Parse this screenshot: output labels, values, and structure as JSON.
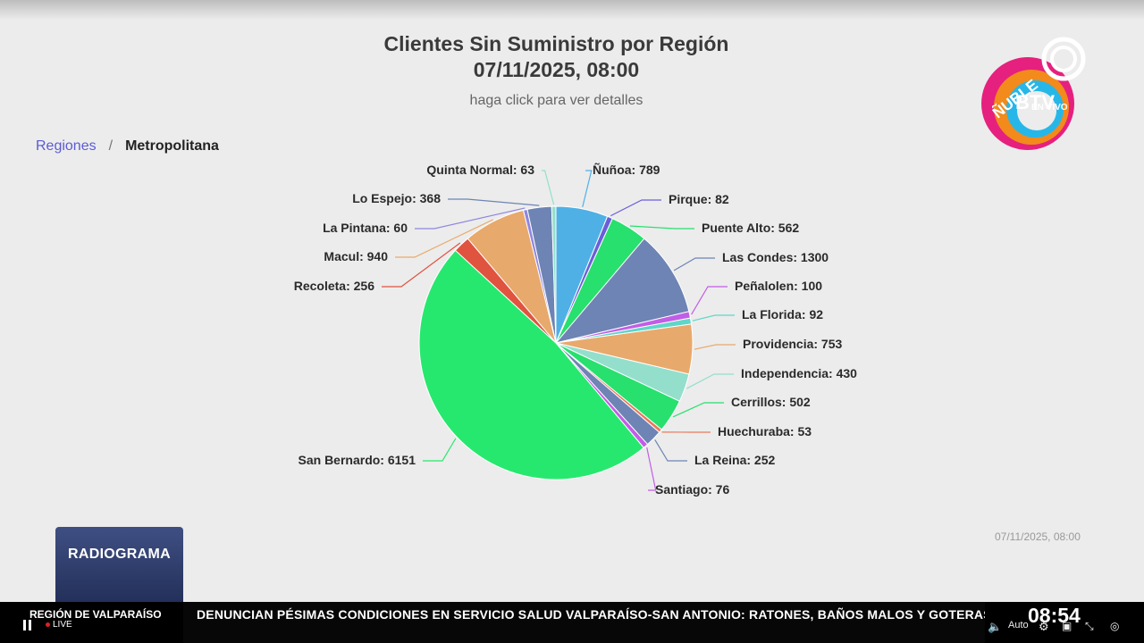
{
  "chart_data": {
    "type": "pie",
    "title": "Clientes Sin Suministro por Región",
    "title_date": "07/11/2025, 08:00",
    "subtitle": "haga click para ver detalles",
    "timestamp": "07/11/2025, 08:00",
    "slices": [
      {
        "name": "Ñuñoa",
        "value": 789,
        "color": "#4fb0e6"
      },
      {
        "name": "Pirque",
        "value": 82,
        "color": "#6a5fd8"
      },
      {
        "name": "Puente Alto",
        "value": 562,
        "color": "#27e06e"
      },
      {
        "name": "Las Condes",
        "value": 1300,
        "color": "#6d84b4"
      },
      {
        "name": "Peñalolen",
        "value": 100,
        "color": "#c25de6"
      },
      {
        "name": "La Florida",
        "value": 92,
        "color": "#5fd6c8"
      },
      {
        "name": "Providencia",
        "value": 753,
        "color": "#e8a96c"
      },
      {
        "name": "Independencia",
        "value": 430,
        "color": "#93dfcc"
      },
      {
        "name": "Cerrillos",
        "value": 502,
        "color": "#27e06e"
      },
      {
        "name": "Huechuraba",
        "value": 53,
        "color": "#e8785c"
      },
      {
        "name": "La Reina",
        "value": 252,
        "color": "#6d84b4"
      },
      {
        "name": "Santiago",
        "value": 76,
        "color": "#c25de6"
      },
      {
        "name": "San Bernardo",
        "value": 6151,
        "color": "#27e86e"
      },
      {
        "name": "Recoleta",
        "value": 256,
        "color": "#e0533f"
      },
      {
        "name": "Macul",
        "value": 940,
        "color": "#e8a96c"
      },
      {
        "name": "La Pintana",
        "value": 60,
        "color": "#8f86e0"
      },
      {
        "name": "Lo Espejo",
        "value": 368,
        "color": "#6d84b4"
      },
      {
        "name": "Quinta Normal",
        "value": 63,
        "color": "#93dfcc"
      }
    ]
  },
  "breadcrumb": {
    "root": "Regiones",
    "separator": "/",
    "current": "Metropolitana"
  },
  "logo": {
    "brand_top": "ÑUBLE",
    "brand_main": "BTV",
    "brand_sub": "EN VIVO"
  },
  "radiograma": {
    "label": "RADIOGRAMA"
  },
  "ticker": {
    "region": "REGIÓN DE VALPARAÍSO",
    "live": "LIVE",
    "headline": "DENUNCIAN PÉSIMAS CONDICIONES EN SERVICIO SALUD VALPARAÍSO-SAN ANTONIO: RATONES, BAÑOS MALOS Y GOTERAS",
    "time": "08:54",
    "quality": "Auto"
  }
}
